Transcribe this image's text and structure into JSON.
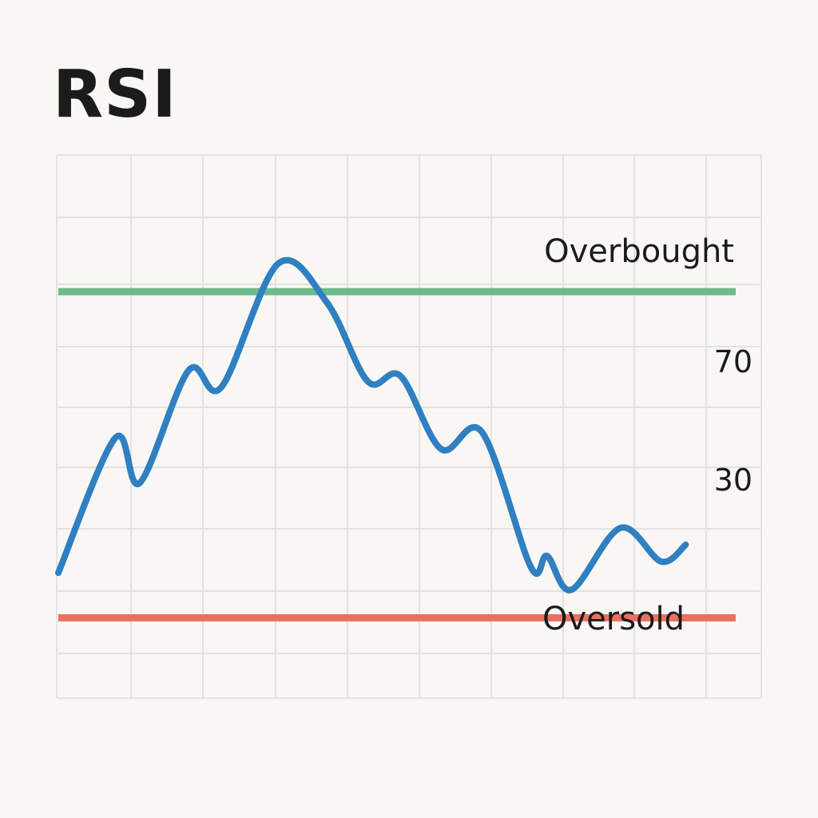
{
  "chart_data": {
    "type": "line",
    "title": "RSI",
    "xlabel": "",
    "ylabel": "",
    "grid": true,
    "legend": "none",
    "ylim": [
      0,
      100
    ],
    "y_tick_labels": [
      "70",
      "30"
    ],
    "reference_lines": [
      {
        "label": "Overbought",
        "color": "#6dbb88",
        "y": 83
      },
      {
        "label": "Oversold",
        "color": "#e8715f",
        "y": 25
      }
    ],
    "series": [
      {
        "color": "#2f7fc1",
        "points": [
          [
            0,
            33
          ],
          [
            7,
            57
          ],
          [
            10,
            49
          ],
          [
            16,
            69
          ],
          [
            20,
            66
          ],
          [
            27,
            88
          ],
          [
            33,
            81
          ],
          [
            38,
            67
          ],
          [
            42,
            68
          ],
          [
            47,
            55
          ],
          [
            52,
            58
          ],
          [
            58,
            34
          ],
          [
            60,
            36
          ],
          [
            63,
            30
          ],
          [
            69,
            41
          ],
          [
            74,
            35
          ],
          [
            77,
            38
          ]
        ]
      }
    ]
  }
}
